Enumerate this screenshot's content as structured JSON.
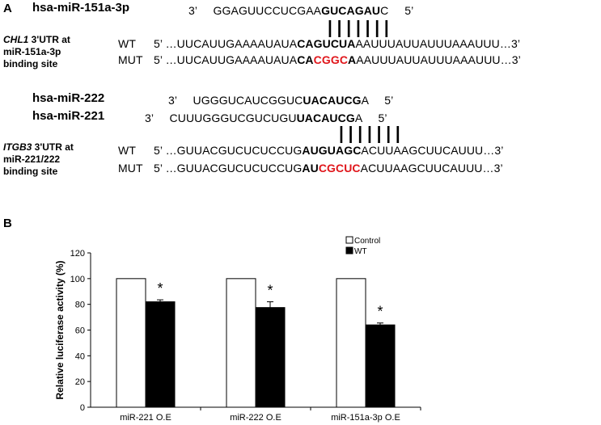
{
  "panel_a": {
    "label": "A",
    "block1": {
      "mirna_name": "hsa-miR-151a-3p",
      "mirna_seq": {
        "end3": "3’",
        "pre": "GGAGUUCCUCGAA",
        "bold": "GUCAGAU",
        "post": "C",
        "end5": "5’"
      },
      "pairing": "| | | | | | |",
      "gene_label": {
        "gene": "CHL1",
        "rest": " 3'UTR at",
        "line2": "miR-151a-3p",
        "line3": "binding site"
      },
      "wt": {
        "label": "WT",
        "prefix": "5’ …UUCAUUGAAAAUAUA",
        "site": "CAGUCUA",
        "suffix": "AAUUUAUUAUUUAAAUUU…3’"
      },
      "mut": {
        "label": "MUT",
        "prefix": "5’ …UUCAUUGAAAAUAUA",
        "site_a": "CA",
        "mutated": "CGGC",
        "site_b": "A",
        "suffix": "AAUUUAUUAUUUAAAUUU…3’"
      }
    },
    "block2": {
      "mir222": {
        "name": "hsa-miR-222",
        "end3": "3’",
        "pre": "UGGGUCAUCGGUC",
        "bold": "UACAUCG",
        "post": "A",
        "end5": "5’"
      },
      "mir221": {
        "name": "hsa-miR-221",
        "end3": "3’",
        "pre": "CUUUGGGUCGUCUGU",
        "bold": "UACAUCG",
        "post": "A",
        "end5": "5’"
      },
      "pairing": "| | | | | | |",
      "gene_label": {
        "gene": "ITGB3",
        "rest": " 3'UTR at",
        "line2": "miR-221/222",
        "line3": "binding site"
      },
      "wt": {
        "label": "WT",
        "prefix": "5’ …GUUACGUCUCUCCUG",
        "site": "AUGUAGC",
        "suffix": "ACUUAAGCUUCAUUU…3’"
      },
      "mut": {
        "label": "MUT",
        "prefix": "5’ …GUUACGUCUCUCCUG",
        "site_a": "AU",
        "mutated": "CGCUC",
        "site_b": "",
        "suffix": "ACUUAAGCUUCAUUU…3’"
      }
    }
  },
  "panel_b": {
    "label": "B"
  },
  "chart_data": {
    "type": "bar",
    "title": "",
    "xlabel": "",
    "ylabel": "Relative luciferase activity (%)",
    "ylim": [
      0,
      120
    ],
    "yticks": [
      0,
      20,
      40,
      60,
      80,
      100,
      120
    ],
    "categories": [
      "miR-221 O.E",
      "miR-222 O.E",
      "miR-151a-3p O.E"
    ],
    "series": [
      {
        "name": "Control",
        "values": [
          100,
          100,
          100
        ],
        "errors": [
          0,
          0,
          0
        ],
        "color": "#ffffff"
      },
      {
        "name": "WT",
        "values": [
          82,
          77.5,
          64
        ],
        "errors": [
          1.5,
          4.5,
          1.5
        ],
        "color": "#000000"
      }
    ],
    "significance": [
      "*",
      "*",
      "*"
    ],
    "legend_position": "top-right"
  }
}
